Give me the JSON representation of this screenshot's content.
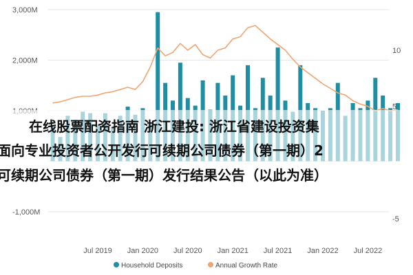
{
  "chart_data": {
    "type": "bar",
    "title": "",
    "xlabel": "",
    "ylabel": "",
    "ylim_left": [
      -1500,
      3000
    ],
    "ylim_right": [
      -7,
      12.5
    ],
    "left_ticks": [
      "3,000M",
      "2,000M",
      "1,000M",
      "-1,000M"
    ],
    "left_tick_values": [
      3000,
      2000,
      1000,
      -1000
    ],
    "right_ticks": [
      "10",
      "5",
      "-5"
    ],
    "right_tick_values": [
      10,
      5,
      -5
    ],
    "x_tick_labels": [
      "Jul 2019",
      "Jan 2020",
      "Jul 2020",
      "Jan 2021",
      "Jul 2021",
      "Jan 2022",
      "Jul 2022"
    ],
    "x_tick_months": [
      -6,
      0,
      6,
      12,
      18,
      24,
      30
    ],
    "legend": [
      "Household Deposits",
      "Annual Growth Rate"
    ],
    "legend_position": "bottom",
    "colors": {
      "bars": "#1f8ea3",
      "line": "#f0a472",
      "grid": "#e6e6e6"
    },
    "series": [
      {
        "name": "Household Deposits",
        "type": "bar",
        "axis": "left",
        "x_months": [
          -12,
          -11,
          -10,
          -9,
          -8,
          -7,
          -6,
          -5,
          -4,
          -3,
          -2,
          -1,
          0,
          1,
          2,
          3,
          4,
          5,
          6,
          7,
          8,
          9,
          10,
          11,
          12,
          13,
          14,
          15,
          16,
          17,
          18,
          19,
          20,
          21,
          22,
          23,
          24,
          25,
          26,
          27,
          28,
          29,
          30,
          31,
          32,
          33,
          34
        ],
        "values": [
          700,
          480,
          900,
          820,
          980,
          950,
          720,
          950,
          680,
          900,
          1080,
          920,
          1050,
          750,
          2950,
          1550,
          1200,
          1950,
          1250,
          1100,
          1600,
          1020,
          1550,
          1300,
          1700,
          1100,
          1900,
          1050,
          1650,
          1300,
          2250,
          1200,
          980,
          1900,
          1150,
          1050,
          1000,
          1050,
          1550,
          900,
          1150,
          1050,
          1200,
          1650,
          1300,
          1050,
          1150
        ]
      },
      {
        "name": "Annual Growth Rate",
        "type": "line",
        "axis": "right",
        "x_months": [
          -12,
          -11,
          -10,
          -9,
          -8,
          -7,
          -6,
          -5,
          -4,
          -3,
          -2,
          -1,
          0,
          1,
          2,
          3,
          4,
          5,
          6,
          7,
          8,
          9,
          10,
          11,
          12,
          13,
          14,
          15,
          16,
          17,
          18,
          19,
          20,
          21,
          22,
          23,
          24,
          25,
          26,
          27,
          28,
          29,
          30,
          31,
          32,
          33,
          34
        ],
        "values": [
          5.3,
          5.4,
          5.6,
          5.8,
          5.9,
          5.9,
          6.0,
          6.2,
          6.3,
          6.5,
          6.7,
          6.5,
          7.2,
          8.5,
          10.2,
          9.5,
          9.8,
          10.6,
          10.0,
          10.5,
          9.6,
          9.3,
          10.0,
          10.2,
          11.0,
          11.2,
          12.0,
          12.2,
          11.6,
          11.0,
          10.5,
          10.0,
          9.2,
          8.5,
          8.0,
          7.5,
          7.0,
          6.6,
          6.2,
          6.0,
          5.5,
          5.2,
          5.0,
          4.6,
          4.8,
          4.6,
          4.7
        ]
      }
    ]
  },
  "overlay_text": [
    "在线股票配资指南 浙江建投: 浙江省建设投资集",
    "面向专业投资者公开发行可续期公司债券（第一期）2",
    "可续期公司债券（第一期）发行结果公告（以此为准）"
  ]
}
